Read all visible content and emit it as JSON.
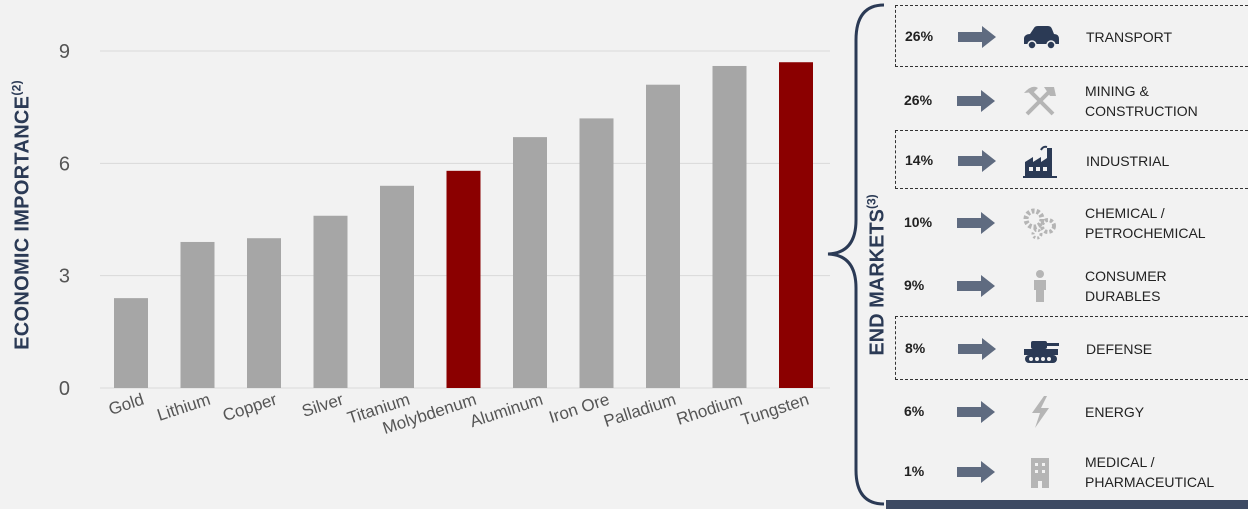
{
  "chart_data": {
    "type": "bar",
    "categories": [
      "Gold",
      "Lithium",
      "Copper",
      "Silver",
      "Titanium",
      "Molybdenum",
      "Aluminum",
      "Iron Ore",
      "Palladium",
      "Rhodium",
      "Tungsten"
    ],
    "values": [
      2.4,
      3.9,
      4.0,
      4.6,
      5.4,
      5.8,
      6.7,
      7.2,
      8.1,
      8.6,
      8.7
    ],
    "highlighted": [
      "Molybdenum",
      "Tungsten"
    ],
    "ylabel": "ECONOMIC IMPORTANCE",
    "ylabel_note": "(2)",
    "yticks": [
      0,
      3,
      6,
      9
    ],
    "ylim": [
      0,
      9.5
    ],
    "grid": true,
    "colors": {
      "bar": "#a6a6a6",
      "highlight": "#8b0000",
      "grid": "#d9d9d9",
      "axis_text": "#555555"
    }
  },
  "end_markets": {
    "title": "END MARKETS",
    "note": "(3)",
    "items": [
      {
        "pct": "26%",
        "label": [
          "TRANSPORT"
        ],
        "icon": "car-icon",
        "boxed": true
      },
      {
        "pct": "26%",
        "label": [
          "MINING &",
          "CONSTRUCTION"
        ],
        "icon": "hammer-pick-icon",
        "boxed": false
      },
      {
        "pct": "14%",
        "label": [
          "INDUSTRIAL"
        ],
        "icon": "factory-icon",
        "boxed": true
      },
      {
        "pct": "10%",
        "label": [
          "CHEMICAL /",
          "PETROCHEMICAL"
        ],
        "icon": "gears-icon",
        "boxed": false
      },
      {
        "pct": "9%",
        "label": [
          "CONSUMER",
          "DURABLES"
        ],
        "icon": "person-icon",
        "boxed": false
      },
      {
        "pct": "8%",
        "label": [
          "DEFENSE"
        ],
        "icon": "tank-icon",
        "boxed": true
      },
      {
        "pct": "6%",
        "label": [
          "ENERGY"
        ],
        "icon": "lightning-icon",
        "boxed": false
      },
      {
        "pct": "1%",
        "label": [
          "MEDICAL /",
          "PHARMACEUTICAL"
        ],
        "icon": "hospital-icon",
        "boxed": false
      }
    ],
    "colors": {
      "arrow": "#5f6b80",
      "icon_dark": "#2b3a55",
      "icon_light": "#b5b5b5"
    }
  }
}
